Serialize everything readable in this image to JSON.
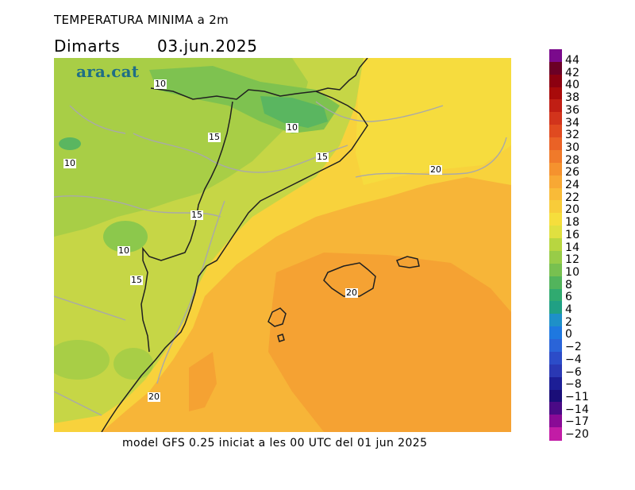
{
  "header": {
    "title": "TEMPERATURA MINIMA a 2m",
    "day": "Dimarts",
    "date": "03.jun.2025"
  },
  "footer": "model GFS 0.25 iniciat a les 00 UTC del 01 jun 2025",
  "map": {
    "logo": "ara.cat",
    "contour_labels": [
      "10",
      "10",
      "15",
      "10",
      "15",
      "15",
      "20",
      "10",
      "15",
      "20",
      "20"
    ]
  },
  "colorbar": {
    "ticks": [
      "44",
      "42",
      "40",
      "38",
      "36",
      "34",
      "32",
      "30",
      "28",
      "26",
      "24",
      "22",
      "20",
      "18",
      "16",
      "14",
      "12",
      "10",
      "8",
      "6",
      "4",
      "2",
      "0",
      "−2",
      "−4",
      "−6",
      "−8",
      "−11",
      "−14",
      "−17",
      "−20"
    ],
    "colors": [
      "#7a0a8c",
      "#6b0026",
      "#8c0010",
      "#a80a0a",
      "#c01e14",
      "#d2341c",
      "#e04a20",
      "#ea6226",
      "#f07a2a",
      "#f5922e",
      "#f8a834",
      "#f9bb38",
      "#f8cc3a",
      "#f6de3c",
      "#e0e040",
      "#b8d640",
      "#98cc48",
      "#78c050",
      "#52b45c",
      "#30aa70",
      "#20a084",
      "#1e90c8",
      "#1e78e0",
      "#2a64d8",
      "#2c4cc8",
      "#2a38b4",
      "#1c1e96",
      "#1a0e78",
      "#4a0a86",
      "#8a0a96",
      "#c21ca6"
    ]
  }
}
